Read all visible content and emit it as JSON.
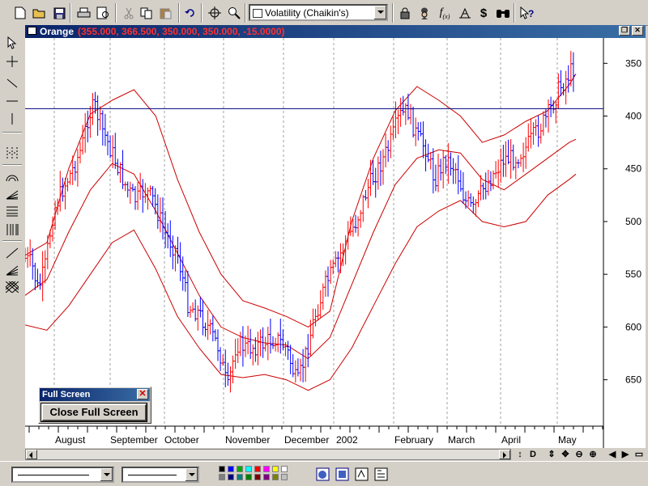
{
  "toolbar": {
    "study_select_value": "Volatility (Chaikin's)",
    "icons": [
      "new-file-icon",
      "open-folder-icon",
      "save-icon",
      "print-icon",
      "print-preview-icon",
      "cut-icon",
      "copy-icon",
      "paste-icon",
      "undo-icon",
      "crosshair-icon",
      "zoom-icon",
      "study-icon",
      "hat-icon",
      "function-icon",
      "indicator-icon",
      "dollar-icon",
      "binoculars-icon",
      "help-icon"
    ]
  },
  "window": {
    "symbol": "Orange",
    "values": "(355.000, 366.500, 350.000, 350.000, -15.0000)"
  },
  "fullscreen_panel": {
    "title": "Full Screen",
    "close_glyph": "✕",
    "button_label": "Close Full Screen"
  },
  "nav": {
    "buttons": [
      "↕",
      "D",
      "⇕",
      "✥",
      "⊖",
      "⊕",
      "◀",
      "▶",
      "▭"
    ]
  },
  "palette": {
    "row1": [
      "#000000",
      "#0000ff",
      "#00aa00",
      "#00ffff",
      "#ff0000",
      "#ff00ff",
      "#ffff00",
      "#ffffff"
    ],
    "row2": [
      "#808080",
      "#000080",
      "#008080",
      "#008000",
      "#800000",
      "#800080",
      "#808000",
      "#c0c0c0"
    ]
  },
  "chart_data": {
    "type": "bar",
    "title": "",
    "y_axis": {
      "ticks": [
        350,
        400,
        450,
        500,
        550,
        600,
        650
      ],
      "inverted": true,
      "range": [
        326,
        694
      ]
    },
    "x_axis": {
      "labels": [
        "August",
        "September",
        "October",
        "November",
        "December",
        "2002",
        "February",
        "March",
        "April",
        "May"
      ]
    },
    "reference_line": 393,
    "grid": "vertical dashed at month boundaries",
    "series": [
      {
        "kind": "ohlc",
        "color_up": "#ff0000",
        "color_down": "#0000ff",
        "close_path": [
          [
            0,
            535
          ],
          [
            6,
            540
          ],
          [
            12,
            565
          ],
          [
            18,
            545
          ],
          [
            26,
            490
          ],
          [
            34,
            470
          ],
          [
            44,
            450
          ],
          [
            52,
            430
          ],
          [
            58,
            400
          ],
          [
            64,
            390
          ],
          [
            70,
            410
          ],
          [
            78,
            430
          ],
          [
            86,
            450
          ],
          [
            94,
            470
          ],
          [
            102,
            480
          ],
          [
            110,
            470
          ],
          [
            118,
            480
          ],
          [
            128,
            510
          ],
          [
            140,
            530
          ],
          [
            150,
            580
          ],
          [
            158,
            585
          ],
          [
            168,
            600
          ],
          [
            178,
            620
          ],
          [
            186,
            660
          ],
          [
            194,
            615
          ],
          [
            204,
            620
          ],
          [
            212,
            618
          ],
          [
            220,
            615
          ],
          [
            230,
            610
          ],
          [
            240,
            620
          ],
          [
            250,
            655
          ],
          [
            258,
            625
          ],
          [
            266,
            590
          ],
          [
            276,
            560
          ],
          [
            286,
            540
          ],
          [
            294,
            520
          ],
          [
            304,
            500
          ],
          [
            314,
            470
          ],
          [
            324,
            450
          ],
          [
            334,
            430
          ],
          [
            344,
            400
          ],
          [
            352,
            395
          ],
          [
            360,
            420
          ],
          [
            368,
            430
          ],
          [
            376,
            460
          ],
          [
            386,
            440
          ],
          [
            396,
            450
          ],
          [
            404,
            480
          ],
          [
            412,
            490
          ],
          [
            420,
            470
          ],
          [
            430,
            455
          ],
          [
            440,
            440
          ],
          [
            450,
            440
          ],
          [
            460,
            430
          ],
          [
            470,
            415
          ],
          [
            480,
            400
          ],
          [
            490,
            375
          ],
          [
            500,
            360
          ],
          [
            506,
            350
          ]
        ]
      },
      {
        "kind": "line",
        "color": "#cc0000",
        "points": [
          [
            0,
            570
          ],
          [
            20,
            555
          ],
          [
            40,
            510
          ],
          [
            60,
            470
          ],
          [
            80,
            445
          ],
          [
            100,
            455
          ],
          [
            120,
            490
          ],
          [
            140,
            530
          ],
          [
            160,
            570
          ],
          [
            180,
            600
          ],
          [
            200,
            610
          ],
          [
            220,
            615
          ],
          [
            240,
            617
          ],
          [
            260,
            630
          ],
          [
            280,
            610
          ],
          [
            300,
            560
          ],
          [
            320,
            510
          ],
          [
            340,
            465
          ],
          [
            360,
            440
          ],
          [
            380,
            432
          ],
          [
            400,
            435
          ],
          [
            420,
            460
          ],
          [
            440,
            470
          ],
          [
            460,
            455
          ],
          [
            480,
            440
          ],
          [
            500,
            425
          ],
          [
            506,
            422
          ]
        ]
      },
      {
        "kind": "line",
        "color": "#cc0000",
        "points": [
          [
            0,
            532
          ],
          [
            20,
            520
          ],
          [
            40,
            450
          ],
          [
            60,
            398
          ],
          [
            80,
            385
          ],
          [
            100,
            375
          ],
          [
            120,
            400
          ],
          [
            140,
            460
          ],
          [
            160,
            510
          ],
          [
            180,
            550
          ],
          [
            200,
            575
          ],
          [
            220,
            582
          ],
          [
            240,
            590
          ],
          [
            260,
            600
          ],
          [
            280,
            585
          ],
          [
            300,
            500
          ],
          [
            320,
            440
          ],
          [
            340,
            395
          ],
          [
            360,
            372
          ],
          [
            380,
            385
          ],
          [
            400,
            400
          ],
          [
            420,
            425
          ],
          [
            440,
            418
          ],
          [
            460,
            405
          ],
          [
            480,
            395
          ],
          [
            500,
            370
          ],
          [
            506,
            360
          ]
        ]
      },
      {
        "kind": "line",
        "color": "#cc0000",
        "points": [
          [
            0,
            598
          ],
          [
            20,
            603
          ],
          [
            40,
            580
          ],
          [
            60,
            550
          ],
          [
            80,
            520
          ],
          [
            100,
            508
          ],
          [
            120,
            545
          ],
          [
            140,
            590
          ],
          [
            160,
            620
          ],
          [
            180,
            645
          ],
          [
            200,
            648
          ],
          [
            220,
            645
          ],
          [
            240,
            650
          ],
          [
            260,
            660
          ],
          [
            280,
            650
          ],
          [
            300,
            620
          ],
          [
            320,
            580
          ],
          [
            340,
            540
          ],
          [
            360,
            505
          ],
          [
            380,
            490
          ],
          [
            400,
            480
          ],
          [
            420,
            500
          ],
          [
            440,
            505
          ],
          [
            460,
            500
          ],
          [
            480,
            475
          ],
          [
            500,
            460
          ],
          [
            506,
            455
          ]
        ]
      }
    ]
  }
}
